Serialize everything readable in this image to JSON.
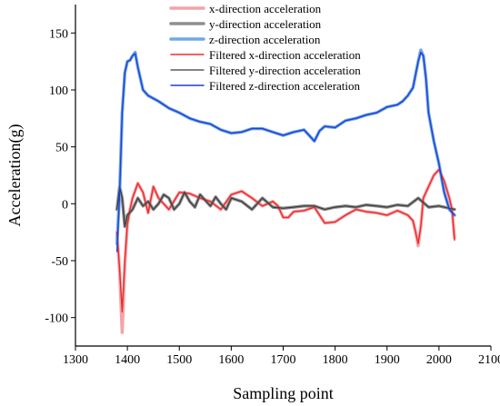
{
  "chart_data": {
    "type": "line",
    "title": "",
    "xlabel": "Sampling point",
    "ylabel": "Acceleration(g)",
    "xlim": [
      1300,
      2100
    ],
    "ylim": [
      -125,
      175
    ],
    "xticks": [
      1300,
      1400,
      1500,
      1600,
      1700,
      1800,
      1900,
      2000,
      2100
    ],
    "yticks": [
      -100,
      -50,
      0,
      50,
      100,
      150
    ],
    "grid": false,
    "legend_position": "top-right",
    "series": [
      {
        "name": "x-direction acceleration",
        "color": "#f4a3a8",
        "width": 3.5,
        "x": [
          1380,
          1385,
          1390,
          1395,
          1400,
          1405,
          1410,
          1420,
          1430,
          1440,
          1450,
          1460,
          1480,
          1500,
          1520,
          1540,
          1560,
          1580,
          1600,
          1620,
          1640,
          1660,
          1680,
          1690,
          1700,
          1710,
          1720,
          1740,
          1760,
          1780,
          1800,
          1820,
          1840,
          1860,
          1880,
          1900,
          1920,
          1940,
          1950,
          1955,
          1960,
          1965,
          1970,
          1980,
          1990,
          2000,
          2010,
          2020,
          2025,
          2030
        ],
        "y": [
          -25,
          -60,
          -113,
          -55,
          -18,
          -5,
          5,
          18,
          10,
          -8,
          15,
          5,
          -5,
          10,
          9,
          5,
          2,
          -5,
          8,
          11,
          5,
          -2,
          2,
          -2,
          -12,
          -12,
          -7,
          -6,
          -3,
          -17,
          -16,
          -10,
          -5,
          -7,
          -8,
          -10,
          -6,
          -10,
          -15,
          -25,
          -37,
          -20,
          5,
          15,
          25,
          30,
          20,
          5,
          -5,
          -30
        ]
      },
      {
        "name": "y-direction acceleration",
        "color": "#8f8f8f",
        "width": 3.5,
        "x": [
          1380,
          1385,
          1390,
          1395,
          1400,
          1410,
          1420,
          1430,
          1440,
          1450,
          1460,
          1470,
          1480,
          1490,
          1500,
          1510,
          1520,
          1530,
          1540,
          1550,
          1560,
          1570,
          1580,
          1590,
          1600,
          1620,
          1640,
          1660,
          1680,
          1700,
          1720,
          1740,
          1760,
          1780,
          1800,
          1820,
          1840,
          1860,
          1880,
          1900,
          1920,
          1940,
          1960,
          1980,
          2000,
          2020,
          2030
        ],
        "y": [
          -5,
          15,
          5,
          -20,
          -10,
          -5,
          5,
          -2,
          2,
          -5,
          0,
          8,
          5,
          -5,
          0,
          10,
          2,
          -3,
          8,
          3,
          -2,
          6,
          0,
          -5,
          5,
          2,
          -5,
          5,
          -3,
          -4,
          -3,
          -2,
          -2,
          -5,
          -3,
          -2,
          -3,
          -1,
          -2,
          -3,
          -1,
          -2,
          5,
          -3,
          -2,
          -4,
          -5
        ]
      },
      {
        "name": "z-direction acceleration",
        "color": "#6fa8e8",
        "width": 3.5,
        "x": [
          1380,
          1385,
          1390,
          1395,
          1400,
          1405,
          1410,
          1415,
          1420,
          1430,
          1440,
          1460,
          1480,
          1500,
          1520,
          1540,
          1560,
          1580,
          1600,
          1620,
          1640,
          1660,
          1680,
          1700,
          1720,
          1740,
          1750,
          1760,
          1770,
          1780,
          1800,
          1820,
          1840,
          1860,
          1880,
          1900,
          1920,
          1930,
          1940,
          1950,
          1960,
          1965,
          1970,
          1975,
          1980,
          1990,
          2000,
          2010,
          2020,
          2030
        ],
        "y": [
          -35,
          10,
          80,
          115,
          125,
          126,
          130,
          133,
          120,
          100,
          95,
          90,
          84,
          80,
          75,
          72,
          70,
          65,
          62,
          63,
          66,
          66,
          63,
          60,
          63,
          65,
          60,
          55,
          64,
          68,
          67,
          73,
          75,
          78,
          80,
          85,
          87,
          90,
          95,
          102,
          125,
          135,
          130,
          110,
          80,
          55,
          35,
          10,
          -5,
          -10
        ]
      },
      {
        "name": "Filtered x-direction acceleration",
        "color": "#ee2a2a",
        "width": 1.4,
        "x": [
          1380,
          1385,
          1390,
          1395,
          1400,
          1405,
          1410,
          1420,
          1430,
          1440,
          1450,
          1460,
          1480,
          1500,
          1520,
          1540,
          1560,
          1580,
          1600,
          1620,
          1640,
          1660,
          1680,
          1690,
          1700,
          1710,
          1720,
          1740,
          1760,
          1780,
          1800,
          1820,
          1840,
          1860,
          1880,
          1900,
          1920,
          1940,
          1950,
          1955,
          1960,
          1965,
          1970,
          1980,
          1990,
          2000,
          2010,
          2020,
          2025,
          2030
        ],
        "y": [
          -25,
          -58,
          -95,
          -50,
          -18,
          -5,
          5,
          18,
          10,
          -8,
          15,
          5,
          -5,
          10,
          9,
          5,
          2,
          -5,
          8,
          11,
          5,
          -2,
          2,
          -2,
          -12,
          -12,
          -7,
          -6,
          -3,
          -17,
          -16,
          -10,
          -5,
          -7,
          -8,
          -10,
          -6,
          -10,
          -15,
          -25,
          -35,
          -20,
          5,
          15,
          25,
          30,
          20,
          5,
          -5,
          -32
        ]
      },
      {
        "name": "Filtered y-direction acceleration",
        "color": "#3a3a3a",
        "width": 1.2,
        "x": [
          1380,
          1385,
          1390,
          1395,
          1400,
          1410,
          1420,
          1430,
          1440,
          1450,
          1460,
          1470,
          1480,
          1490,
          1500,
          1510,
          1520,
          1530,
          1540,
          1550,
          1560,
          1570,
          1580,
          1590,
          1600,
          1620,
          1640,
          1660,
          1680,
          1700,
          1720,
          1740,
          1760,
          1780,
          1800,
          1820,
          1840,
          1860,
          1880,
          1900,
          1920,
          1940,
          1960,
          1980,
          2000,
          2020,
          2030
        ],
        "y": [
          -5,
          15,
          5,
          -20,
          -10,
          -5,
          5,
          -2,
          2,
          -5,
          0,
          8,
          5,
          -5,
          0,
          10,
          2,
          -3,
          8,
          3,
          -2,
          6,
          0,
          -5,
          5,
          2,
          -5,
          5,
          -3,
          -4,
          -3,
          -2,
          -2,
          -5,
          -3,
          -2,
          -3,
          -1,
          -2,
          -3,
          -1,
          -2,
          5,
          -3,
          -2,
          -4,
          -5
        ]
      },
      {
        "name": "Filtered z-direction acceleration",
        "color": "#1f3fd6",
        "width": 1.4,
        "x": [
          1380,
          1385,
          1390,
          1395,
          1400,
          1405,
          1410,
          1415,
          1420,
          1430,
          1440,
          1460,
          1480,
          1500,
          1520,
          1540,
          1560,
          1580,
          1600,
          1620,
          1640,
          1660,
          1680,
          1700,
          1720,
          1740,
          1750,
          1760,
          1770,
          1780,
          1800,
          1820,
          1840,
          1860,
          1880,
          1900,
          1920,
          1930,
          1940,
          1950,
          1960,
          1965,
          1970,
          1975,
          1980,
          1990,
          2000,
          2010,
          2020,
          2030
        ],
        "y": [
          -42,
          10,
          80,
          115,
          125,
          126,
          130,
          132,
          120,
          100,
          95,
          90,
          84,
          80,
          75,
          72,
          70,
          65,
          62,
          63,
          66,
          66,
          63,
          60,
          63,
          65,
          60,
          55,
          64,
          68,
          67,
          73,
          75,
          78,
          80,
          85,
          87,
          90,
          95,
          102,
          125,
          133,
          130,
          110,
          80,
          55,
          35,
          10,
          -5,
          -10
        ]
      }
    ]
  }
}
